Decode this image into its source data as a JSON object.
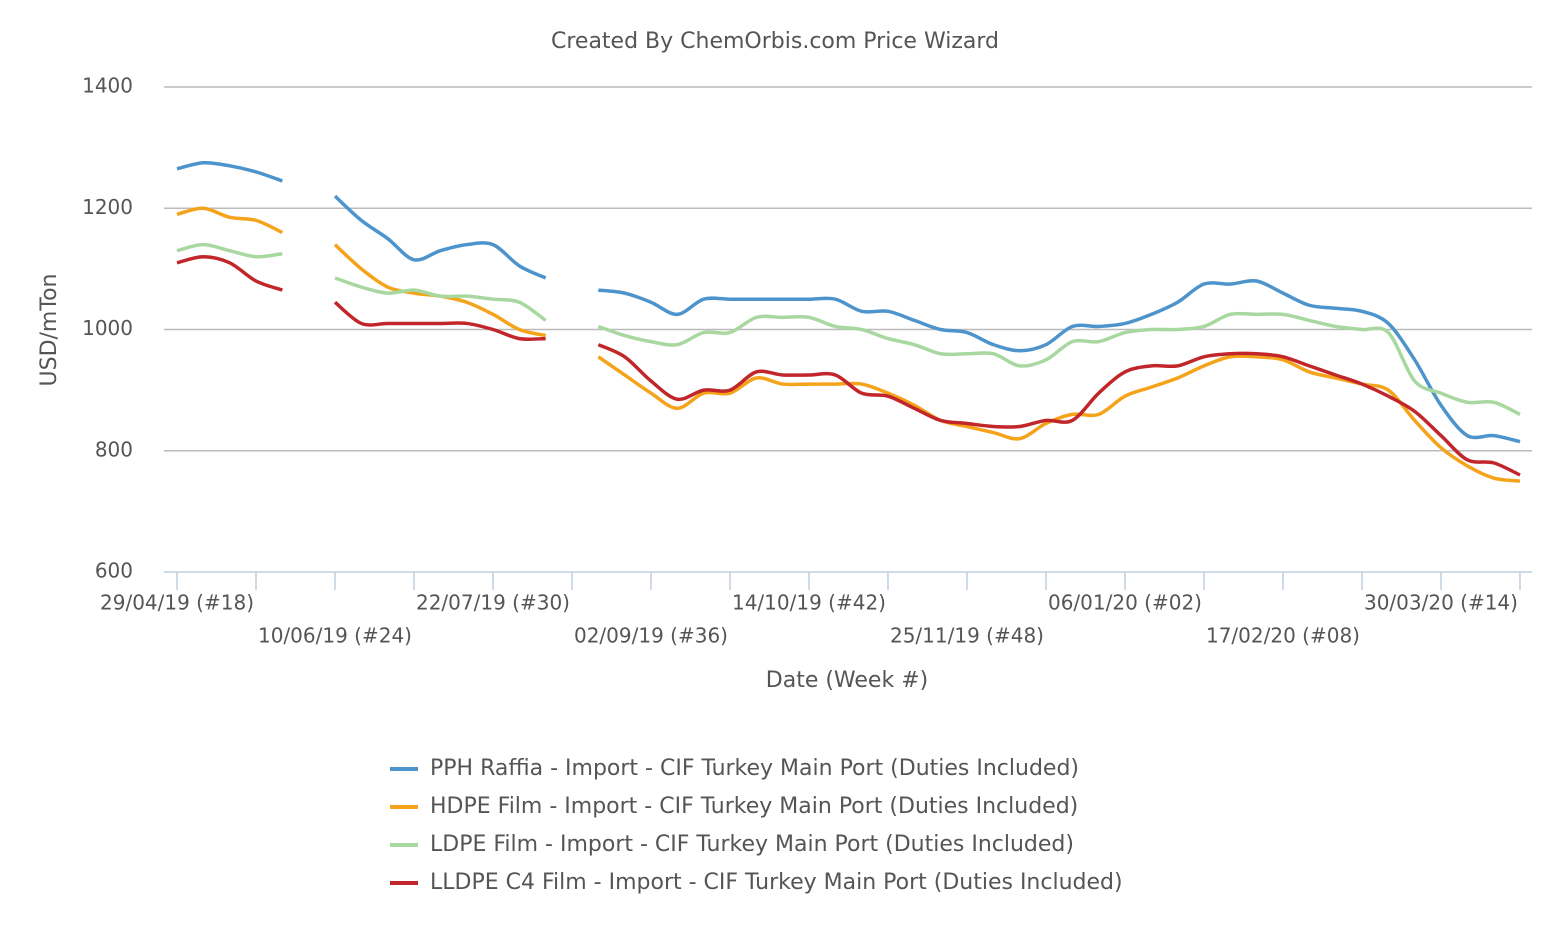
{
  "chart_data": {
    "type": "line",
    "title": "Created By ChemOrbis.com Price Wizard",
    "x_label": "Date (Week #)",
    "y_label": "USD/mTon",
    "categories": [
      "29/04/19 (#18)",
      null,
      null,
      null,
      null,
      null,
      "10/06/19 (#24)",
      null,
      null,
      null,
      null,
      null,
      "22/07/19 (#30)",
      null,
      null,
      null,
      null,
      null,
      "02/09/19 (#36)",
      null,
      null,
      null,
      null,
      null,
      "14/10/19 (#42)",
      null,
      null,
      null,
      null,
      null,
      "25/11/19 (#48)",
      null,
      null,
      null,
      null,
      null,
      "06/01/20 (#02)",
      null,
      null,
      null,
      null,
      null,
      "17/02/20 (#08)",
      null,
      null,
      null,
      null,
      null,
      "30/03/20 (#14)",
      null,
      null,
      null
    ],
    "ylim": [
      600,
      1400
    ],
    "yticks": [
      600,
      800,
      1000,
      1200,
      1400
    ],
    "grid": true,
    "series": [
      {
        "name": "PPH Raffia - Import - CIF Turkey Main Port (Duties Included)",
        "color": "#4d94cc",
        "values": [
          1265,
          1275,
          1270,
          1260,
          1245,
          null,
          1220,
          1180,
          1150,
          1115,
          1130,
          1140,
          1140,
          1105,
          1085,
          null,
          1065,
          1060,
          1045,
          1025,
          1050,
          1050,
          1050,
          1050,
          1050,
          1050,
          1030,
          1030,
          1015,
          1000,
          995,
          975,
          965,
          975,
          1005,
          1005,
          1010,
          1025,
          1045,
          1075,
          1075,
          1080,
          1060,
          1040,
          1035,
          1030,
          1010,
          950,
          875,
          825,
          825,
          815
        ]
      },
      {
        "name": "HDPE Film - Import - CIF Turkey Main Port (Duties Included)",
        "color": "#f5a31a",
        "values": [
          1190,
          1200,
          1185,
          1180,
          1160,
          null,
          1140,
          1100,
          1070,
          1060,
          1055,
          1045,
          1025,
          1000,
          990,
          null,
          955,
          925,
          895,
          870,
          895,
          895,
          920,
          910,
          910,
          910,
          910,
          895,
          875,
          850,
          840,
          830,
          820,
          845,
          860,
          860,
          890,
          905,
          920,
          940,
          955,
          955,
          950,
          930,
          920,
          910,
          900,
          850,
          805,
          775,
          755,
          750
        ]
      },
      {
        "name": "LDPE Film - Import - CIF Turkey Main Port (Duties Included)",
        "color": "#a8d8a0",
        "values": [
          1130,
          1140,
          1130,
          1120,
          1125,
          null,
          1085,
          1070,
          1060,
          1065,
          1055,
          1055,
          1050,
          1045,
          1015,
          null,
          1005,
          990,
          980,
          975,
          995,
          995,
          1020,
          1020,
          1020,
          1005,
          1000,
          985,
          975,
          960,
          960,
          960,
          940,
          950,
          980,
          980,
          995,
          1000,
          1000,
          1005,
          1025,
          1025,
          1025,
          1015,
          1005,
          1000,
          995,
          915,
          895,
          880,
          880,
          860
        ]
      },
      {
        "name": "LLDPE C4 Film - Import - CIF Turkey Main Port (Duties Included)",
        "color": "#c1262a",
        "values": [
          1110,
          1120,
          1110,
          1080,
          1065,
          null,
          1045,
          1010,
          1010,
          1010,
          1010,
          1010,
          1000,
          985,
          985,
          null,
          975,
          955,
          915,
          885,
          900,
          900,
          930,
          925,
          925,
          925,
          895,
          890,
          870,
          850,
          845,
          840,
          840,
          850,
          850,
          895,
          930,
          940,
          940,
          955,
          960,
          960,
          955,
          940,
          925,
          910,
          890,
          865,
          825,
          785,
          780,
          760
        ]
      }
    ]
  }
}
